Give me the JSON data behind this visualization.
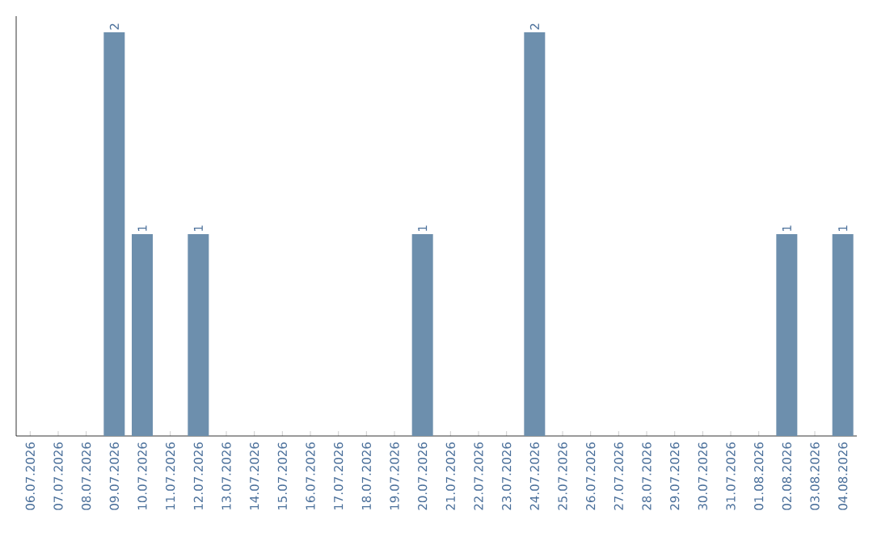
{
  "chart_data": {
    "type": "bar",
    "categories": [
      "06.07.2026",
      "07.07.2026",
      "08.07.2026",
      "09.07.2026",
      "10.07.2026",
      "11.07.2026",
      "12.07.2026",
      "13.07.2026",
      "14.07.2026",
      "15.07.2026",
      "16.07.2026",
      "17.07.2026",
      "18.07.2026",
      "19.07.2026",
      "20.07.2026",
      "21.07.2026",
      "22.07.2026",
      "23.07.2026",
      "24.07.2026",
      "25.07.2026",
      "26.07.2026",
      "27.07.2026",
      "28.07.2026",
      "29.07.2026",
      "30.07.2026",
      "31.07.2026",
      "01.08.2026",
      "02.08.2026",
      "03.08.2026",
      "04.08.2026"
    ],
    "values": [
      0,
      0,
      0,
      2,
      1,
      0,
      1,
      0,
      0,
      0,
      0,
      0,
      0,
      0,
      1,
      0,
      0,
      0,
      2,
      0,
      0,
      0,
      0,
      0,
      0,
      0,
      0,
      1,
      0,
      1
    ],
    "value_labels": [
      null,
      null,
      null,
      "2",
      "1",
      null,
      "1",
      null,
      null,
      null,
      null,
      null,
      null,
      null,
      "1",
      null,
      null,
      null,
      "2",
      null,
      null,
      null,
      null,
      null,
      null,
      null,
      null,
      "1",
      null,
      "1"
    ],
    "color": "#6d8fad",
    "relative": false
  }
}
